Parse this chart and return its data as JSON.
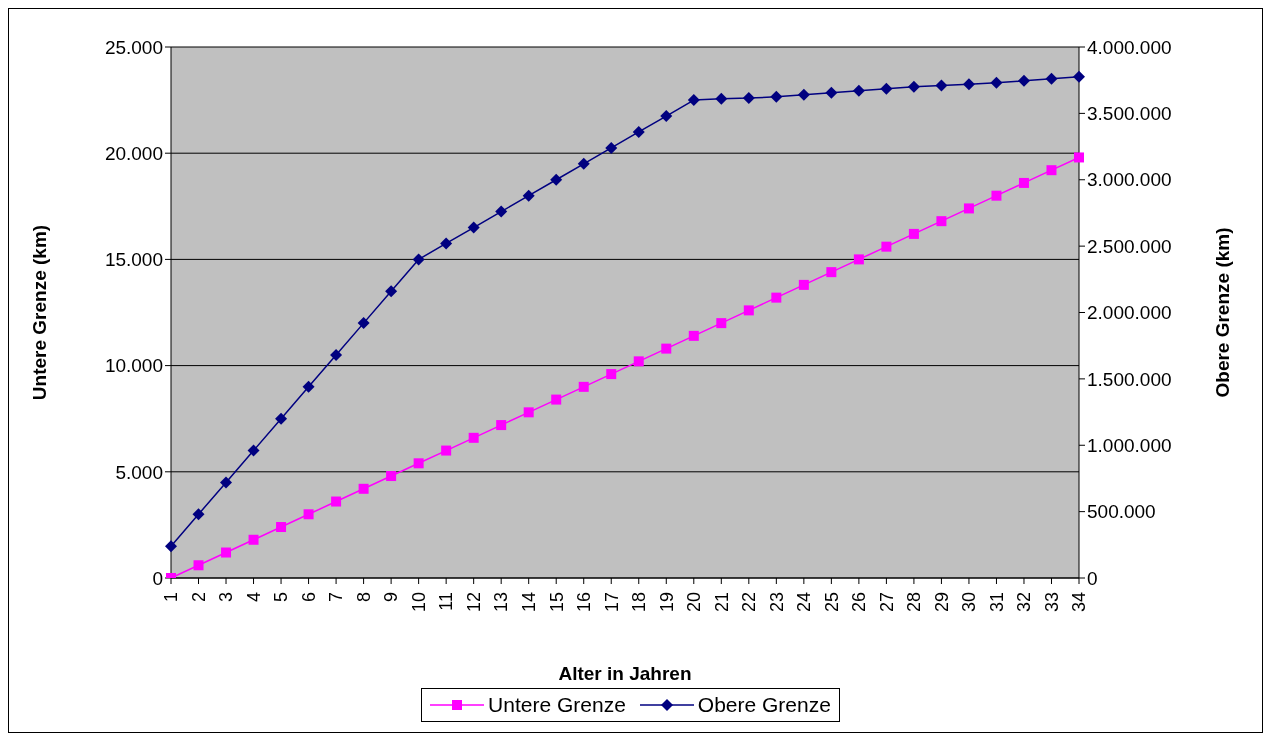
{
  "chart_data": {
    "type": "line",
    "xlabel": "Alter in Jahren",
    "ylabel": "Untere Grenze (km)",
    "y2label": "Obere Grenze (km)",
    "categories": [
      "1",
      "2",
      "3",
      "4",
      "5",
      "6",
      "7",
      "8",
      "9",
      "10",
      "11",
      "12",
      "13",
      "14",
      "15",
      "16",
      "17",
      "18",
      "19",
      "20",
      "21",
      "22",
      "23",
      "24",
      "25",
      "26",
      "27",
      "28",
      "29",
      "30",
      "31",
      "32",
      "33",
      "34"
    ],
    "series": [
      {
        "name": "Untere Grenze",
        "color": "#ff00ff",
        "marker": "square",
        "values": [
          0,
          600,
          1200,
          1800,
          2400,
          3000,
          3600,
          4200,
          4800,
          5400,
          6000,
          6600,
          7200,
          7800,
          8400,
          9000,
          9600,
          10200,
          10800,
          11400,
          12000,
          12600,
          13200,
          13800,
          14400,
          15000,
          15600,
          16200,
          16800,
          17400,
          18000,
          18600,
          19200,
          19800
        ]
      },
      {
        "name": "Obere Grenze",
        "color": "#000080",
        "marker": "diamond",
        "axis": "y2",
        "values": [
          240000,
          480000,
          720000,
          960000,
          1200000,
          1440000,
          1680000,
          1920000,
          2160000,
          2400000,
          2520000,
          2640000,
          2760000,
          2880000,
          3000000,
          3120000,
          3240000,
          3360000,
          3480000,
          3600000,
          3610000,
          3615000,
          3625000,
          3640000,
          3655000,
          3670000,
          3685000,
          3700000,
          3710000,
          3720000,
          3730000,
          3745000,
          3760000,
          3775000
        ]
      }
    ],
    "ylim": [
      0,
      25000
    ],
    "yticks": [
      0,
      {
        "value": 5000,
        "label": "5.000"
      },
      {
        "value": 10000,
        "label": "10.000"
      },
      {
        "value": 15000,
        "label": "15.000"
      },
      {
        "value": 20000,
        "label": "20.000"
      },
      {
        "value": 25000,
        "label": "25.000"
      }
    ],
    "y2lim": [
      0,
      4000000
    ],
    "y2ticks": [
      0,
      {
        "value": 500000,
        "label": "500.000"
      },
      {
        "value": 1000000,
        "label": "1.000.000"
      },
      {
        "value": 1500000,
        "label": "1.500.000"
      },
      {
        "value": 2000000,
        "label": "2.000.000"
      },
      {
        "value": 2500000,
        "label": "2.500.000"
      },
      {
        "value": 3000000,
        "label": "3.000.000"
      },
      {
        "value": 3500000,
        "label": "3.500.000"
      },
      {
        "value": 4000000,
        "label": "4.000.000"
      }
    ],
    "grid": "y",
    "legend": "bottom",
    "line_style": "solid"
  }
}
